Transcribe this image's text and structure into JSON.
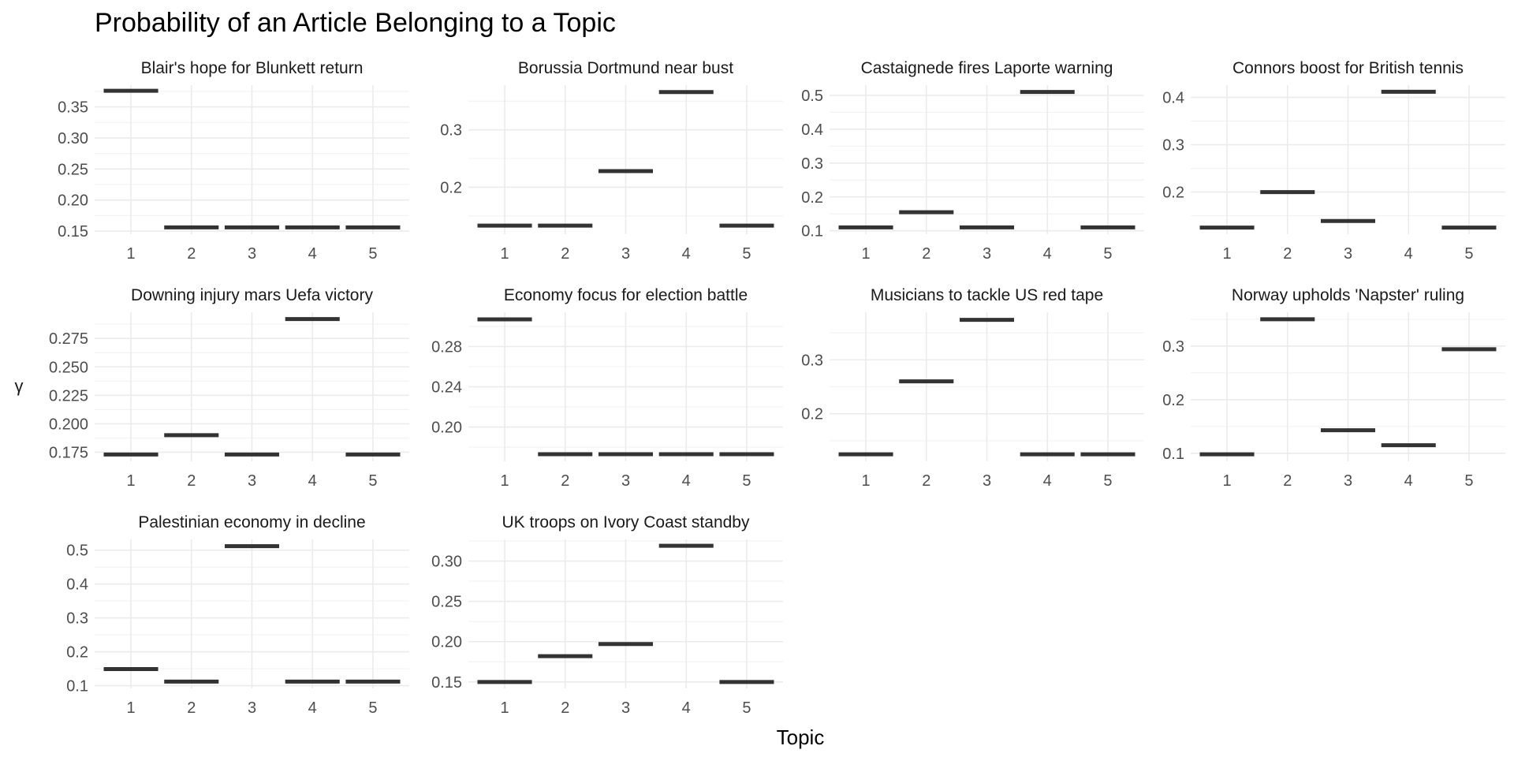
{
  "chart": {
    "title": "Probability of an Article Belonging to a Topic",
    "ylabel": "γ",
    "xlabel": "Topic"
  },
  "chart_data": {
    "type": "faceted-errorbar",
    "title": "Probability of an Article Belonging to a Topic",
    "xlabel": "Topic",
    "ylabel": "γ",
    "categories": [
      "1",
      "2",
      "3",
      "4",
      "5"
    ],
    "grid": true,
    "facets": [
      {
        "name": "Blair's hope for Blunkett return",
        "values": [
          0.376,
          0.156,
          0.156,
          0.156,
          0.156
        ],
        "ylim": [
          0.145,
          0.385
        ],
        "yticks": [
          0.15,
          0.2,
          0.25,
          0.3,
          0.35
        ],
        "ytick_labels": [
          "0.15",
          "0.20",
          "0.25",
          "0.30",
          "0.35"
        ]
      },
      {
        "name": "Borussia Dortmund near bust",
        "values": [
          0.133,
          0.133,
          0.228,
          0.366,
          0.133
        ],
        "ylim": [
          0.118,
          0.378
        ],
        "yticks": [
          0.2,
          0.3
        ],
        "ytick_labels": [
          "0.2",
          "0.3"
        ]
      },
      {
        "name": "Castaignede fires Laporte warning",
        "values": [
          0.11,
          0.155,
          0.11,
          0.51,
          0.11
        ],
        "ylim": [
          0.09,
          0.53
        ],
        "yticks": [
          0.1,
          0.2,
          0.3,
          0.4,
          0.5
        ],
        "ytick_labels": [
          "0.1",
          "0.2",
          "0.3",
          "0.4",
          "0.5"
        ]
      },
      {
        "name": "Connors boost for British tennis",
        "values": [
          0.125,
          0.2,
          0.139,
          0.412,
          0.125
        ],
        "ylim": [
          0.111,
          0.426
        ],
        "yticks": [
          0.2,
          0.3,
          0.4
        ],
        "ytick_labels": [
          "0.2",
          "0.3",
          "0.4"
        ]
      },
      {
        "name": "Downing injury mars Uefa victory",
        "values": [
          0.173,
          0.19,
          0.173,
          0.292,
          0.173
        ],
        "ylim": [
          0.167,
          0.298
        ],
        "yticks": [
          0.175,
          0.2,
          0.225,
          0.25,
          0.275
        ],
        "ytick_labels": [
          "0.175",
          "0.200",
          "0.225",
          "0.250",
          "0.275"
        ]
      },
      {
        "name": "Economy focus for election battle",
        "values": [
          0.307,
          0.173,
          0.173,
          0.173,
          0.173
        ],
        "ylim": [
          0.166,
          0.314
        ],
        "yticks": [
          0.2,
          0.24,
          0.28
        ],
        "ytick_labels": [
          "0.20",
          "0.24",
          "0.28"
        ]
      },
      {
        "name": "Musicians to tackle US red tape",
        "values": [
          0.125,
          0.26,
          0.374,
          0.125,
          0.125
        ],
        "ylim": [
          0.112,
          0.388
        ],
        "yticks": [
          0.2,
          0.3
        ],
        "ytick_labels": [
          "0.2",
          "0.3"
        ]
      },
      {
        "name": "Norway upholds 'Napster' ruling",
        "values": [
          0.098,
          0.35,
          0.143,
          0.115,
          0.294
        ],
        "ylim": [
          0.085,
          0.363
        ],
        "yticks": [
          0.1,
          0.2,
          0.3
        ],
        "ytick_labels": [
          "0.1",
          "0.2",
          "0.3"
        ]
      },
      {
        "name": "Palestinian economy in decline",
        "values": [
          0.149,
          0.112,
          0.512,
          0.112,
          0.112
        ],
        "ylim": [
          0.092,
          0.532
        ],
        "yticks": [
          0.1,
          0.2,
          0.3,
          0.4,
          0.5
        ],
        "ytick_labels": [
          "0.1",
          "0.2",
          "0.3",
          "0.4",
          "0.5"
        ]
      },
      {
        "name": "UK troops on Ivory Coast standby",
        "values": [
          0.15,
          0.182,
          0.197,
          0.319,
          0.15
        ],
        "ylim": [
          0.142,
          0.327
        ],
        "yticks": [
          0.15,
          0.2,
          0.25,
          0.3
        ],
        "ytick_labels": [
          "0.15",
          "0.20",
          "0.25",
          "0.30"
        ]
      }
    ]
  }
}
